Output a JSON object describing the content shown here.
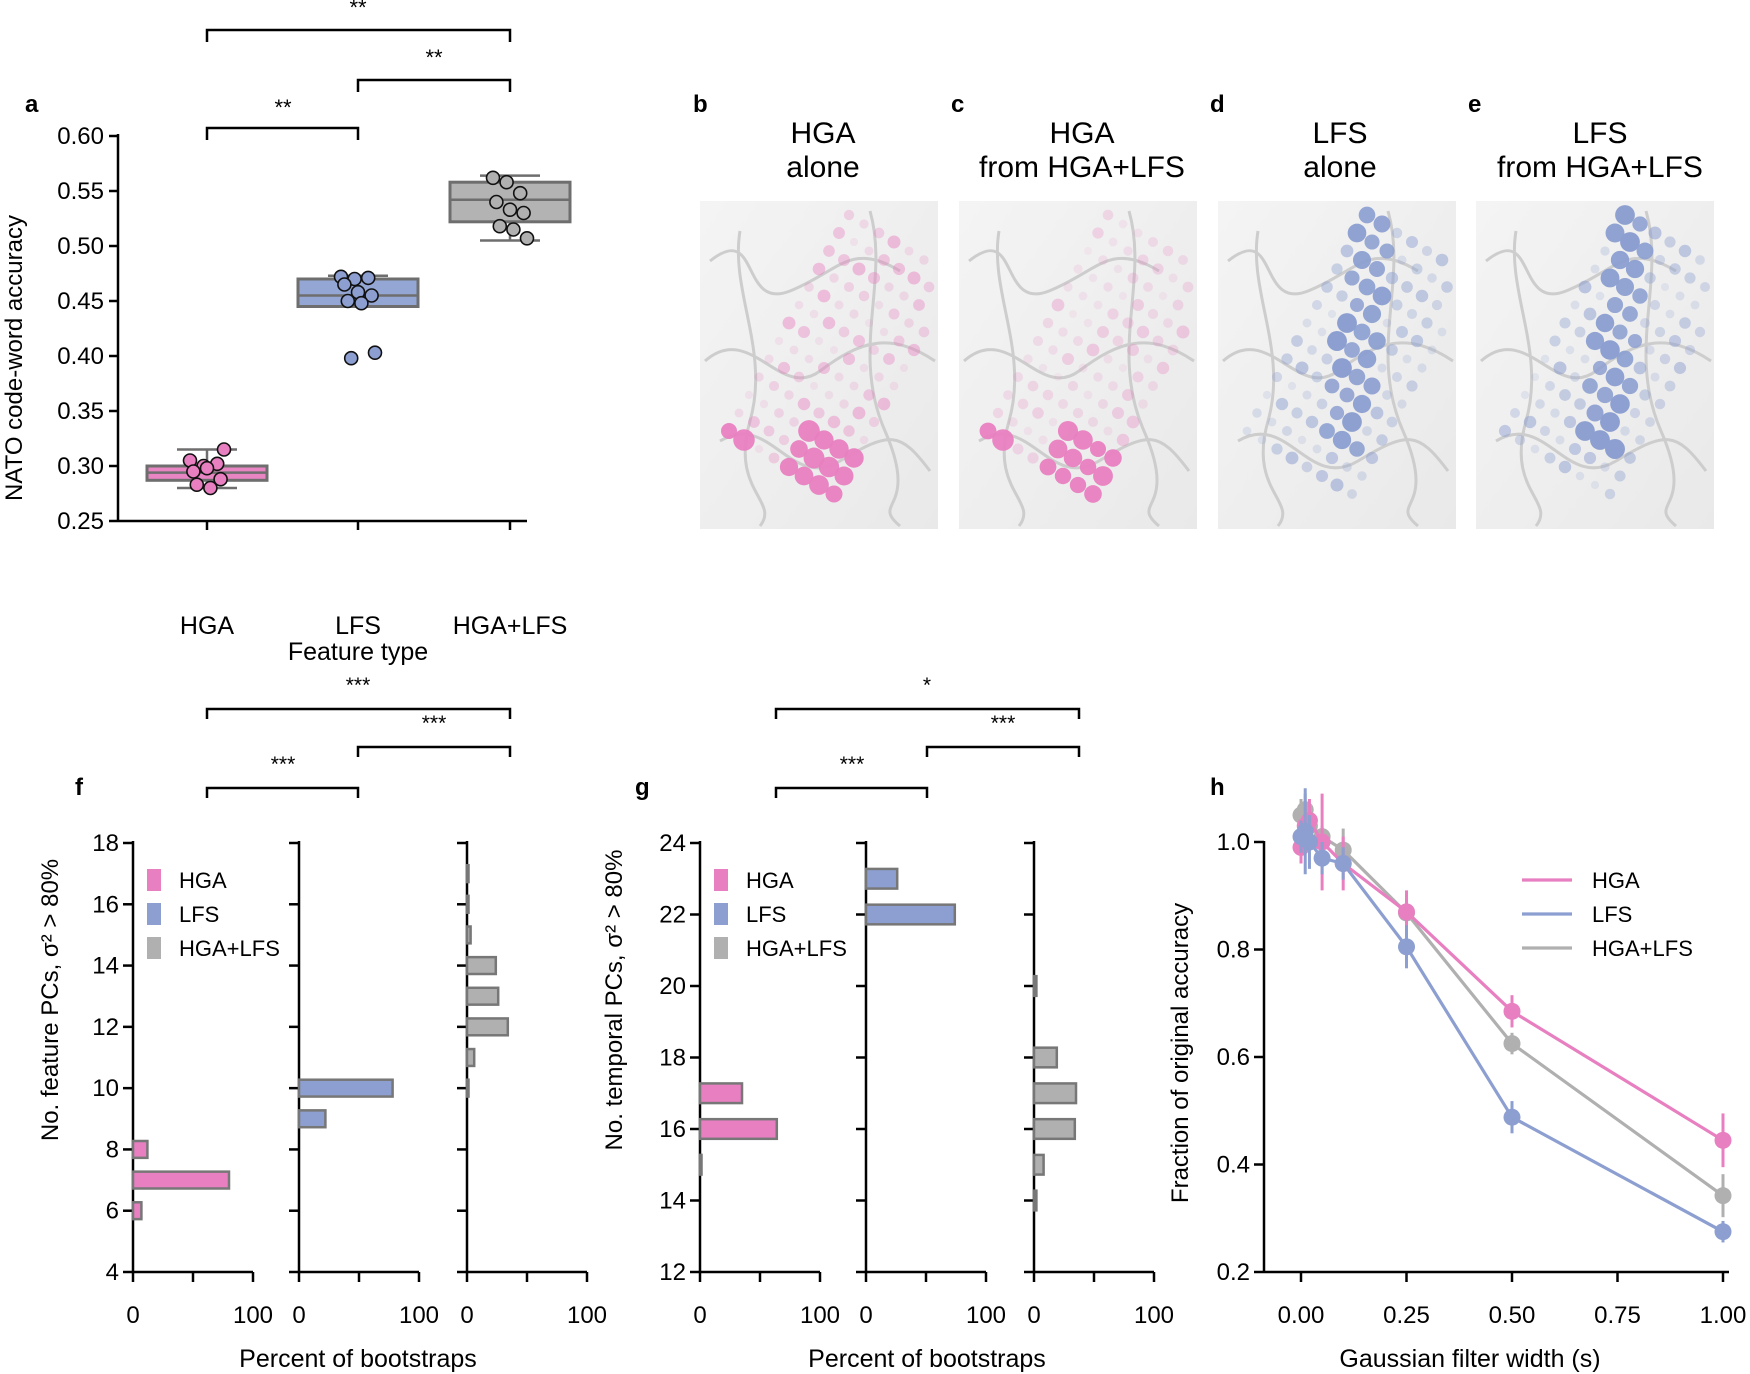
{
  "colors": {
    "hga": "#e87fc0",
    "lfs": "#8c9fd0",
    "both": "#b0b0b0",
    "boxHga": "#e885c2",
    "boxLfs": "#93a6d4",
    "boxBoth": "#b3b3b3",
    "edge": "#6e6e6e"
  },
  "panels": {
    "a": {
      "letter": "a",
      "ylabel": "NATO code-word accuracy",
      "xlabel": "Feature type",
      "sig_ab": "**",
      "sig_bc": "**",
      "sig_ac": "**"
    },
    "b": {
      "letter": "b",
      "title1": "HGA",
      "title2": "alone"
    },
    "c": {
      "letter": "c",
      "title1": "HGA",
      "title2": "from HGA+LFS"
    },
    "d": {
      "letter": "d",
      "title1": "LFS",
      "title2": "alone"
    },
    "e": {
      "letter": "e",
      "title1": "LFS",
      "title2": "from HGA+LFS"
    },
    "f": {
      "letter": "f",
      "ylabel": "No. feature PCs, σ² > 80%",
      "xlabel": "Percent of bootstraps",
      "sig_ab": "***",
      "sig_bc": "***",
      "sig_ac": "***"
    },
    "g": {
      "letter": "g",
      "ylabel": "No. temporal PCs, σ² > 80%",
      "xlabel": "Percent of bootstraps",
      "sig_ab": "***",
      "sig_bc": "***",
      "sig_ac": "*"
    },
    "h": {
      "letter": "h",
      "ylabel": "Fraction of original accuracy",
      "xlabel": "Gaussian filter width (s)"
    }
  },
  "legend": [
    "HGA",
    "LFS",
    "HGA+LFS"
  ],
  "chart_data": [
    {
      "panel": "a",
      "type": "box",
      "categories": [
        "HGA",
        "LFS",
        "HGA+LFS"
      ],
      "ylim": [
        0.25,
        0.6
      ],
      "yticks": [
        "0.25",
        "0.30",
        "0.35",
        "0.40",
        "0.45",
        "0.50",
        "0.55",
        "0.60"
      ],
      "boxes": [
        {
          "name": "HGA",
          "whislo": 0.28,
          "q1": 0.287,
          "med": 0.294,
          "q3": 0.3,
          "whishi": 0.315,
          "points": [
            0.305,
            0.3,
            0.302,
            0.295,
            0.298,
            0.288,
            0.283,
            0.28,
            0.315
          ]
        },
        {
          "name": "LFS",
          "whislo": 0.445,
          "q1": 0.445,
          "med": 0.455,
          "q3": 0.47,
          "whishi": 0.473,
          "points": [
            0.472,
            0.47,
            0.471,
            0.465,
            0.458,
            0.455,
            0.45,
            0.448,
            0.403,
            0.398
          ]
        },
        {
          "name": "HGA+LFS",
          "whislo": 0.505,
          "q1": 0.522,
          "med": 0.542,
          "q3": 0.558,
          "whishi": 0.564,
          "points": [
            0.562,
            0.558,
            0.548,
            0.54,
            0.533,
            0.53,
            0.518,
            0.515,
            0.507
          ]
        }
      ]
    },
    {
      "panel": "f",
      "type": "bar",
      "orientation": "horizontal",
      "ylim": [
        4,
        18
      ],
      "yticks": [
        "4",
        "6",
        "8",
        "10",
        "12",
        "14",
        "16",
        "18"
      ],
      "xlim": [
        0,
        100
      ],
      "xticks": [
        "0",
        "100"
      ],
      "series": [
        {
          "name": "HGA",
          "y": [
            6,
            7,
            8
          ],
          "values": [
            7,
            80,
            12
          ]
        },
        {
          "name": "LFS",
          "y": [
            9,
            10
          ],
          "values": [
            22,
            78
          ]
        },
        {
          "name": "HGA+LFS",
          "y": [
            10,
            11,
            12,
            13,
            14,
            15,
            16,
            17
          ],
          "values": [
            1,
            6,
            34,
            26,
            24,
            3,
            1,
            0.5
          ]
        }
      ]
    },
    {
      "panel": "g",
      "type": "bar",
      "orientation": "horizontal",
      "ylim": [
        12,
        24
      ],
      "yticks": [
        "12",
        "14",
        "16",
        "18",
        "20",
        "22",
        "24"
      ],
      "xlim": [
        0,
        100
      ],
      "xticks": [
        "0",
        "100"
      ],
      "series": [
        {
          "name": "HGA",
          "y": [
            15,
            16,
            17
          ],
          "values": [
            1,
            64,
            35
          ]
        },
        {
          "name": "LFS",
          "y": [
            22,
            23
          ],
          "values": [
            74,
            26
          ]
        },
        {
          "name": "HGA+LFS",
          "y": [
            14,
            15,
            16,
            17,
            18,
            20
          ],
          "values": [
            2,
            8,
            34,
            35,
            19,
            2
          ]
        }
      ]
    },
    {
      "panel": "h",
      "type": "line",
      "xlim": [
        -0.1,
        1.0
      ],
      "ylim": [
        0.2,
        1.08
      ],
      "xticks": [
        "0.00",
        "0.25",
        "0.50",
        "0.75",
        "1.00"
      ],
      "yticks": [
        "0.2",
        "0.4",
        "0.6",
        "0.8",
        "1.0"
      ],
      "x": [
        0.0,
        0.01,
        0.02,
        0.05,
        0.1,
        0.25,
        0.5,
        1.0
      ],
      "series": [
        {
          "name": "HGA",
          "values": [
            0.99,
            1.03,
            1.04,
            1.0,
            0.96,
            0.87,
            0.685,
            0.445
          ],
          "err": [
            0.03,
            0.04,
            0.04,
            0.09,
            0.05,
            0.04,
            0.03,
            0.05
          ]
        },
        {
          "name": "LFS",
          "values": [
            1.01,
            1.02,
            1.0,
            0.97,
            0.96,
            0.805,
            0.488,
            0.275
          ],
          "err": [
            0.03,
            0.08,
            0.05,
            0.03,
            0.03,
            0.04,
            0.03,
            0.02
          ]
        },
        {
          "name": "HGA+LFS",
          "values": [
            1.05,
            1.06,
            1.03,
            1.01,
            0.985,
            0.868,
            0.625,
            0.342
          ],
          "err": [
            0.03,
            0.03,
            0.04,
            0.02,
            0.04,
            0.04,
            0.02,
            0.04
          ]
        }
      ]
    }
  ]
}
